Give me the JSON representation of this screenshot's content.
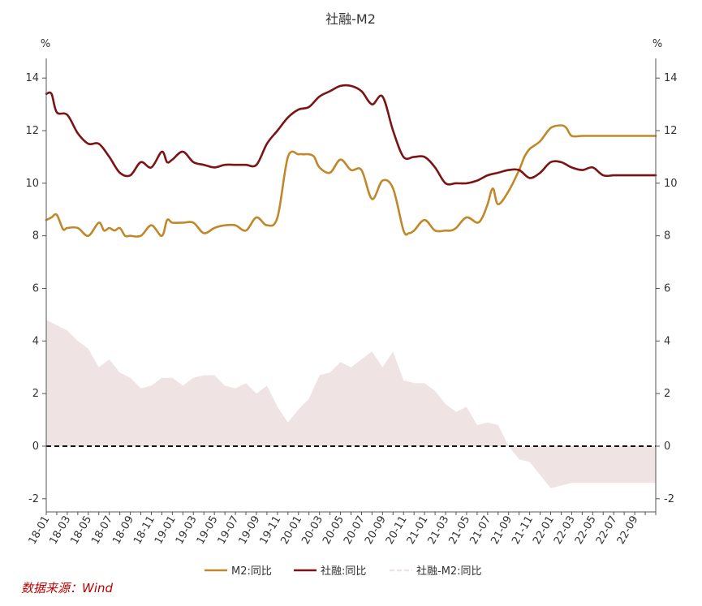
{
  "chart_data": {
    "type": "line",
    "title": "社融-M2",
    "source": "数据来源：Wind",
    "unit_left": "%",
    "unit_right": "%",
    "ylim": [
      -2.5,
      14.5
    ],
    "yticks": [
      -2,
      0,
      2,
      4,
      6,
      8,
      10,
      12,
      14
    ],
    "xlim": [
      0,
      58
    ],
    "xtick_labels": [
      "18-01",
      "18-03",
      "18-05",
      "18-07",
      "18-09",
      "18-11",
      "19-01",
      "19-03",
      "19-05",
      "19-07",
      "19-09",
      "19-11",
      "20-01",
      "20-03",
      "20-05",
      "20-07",
      "20-09",
      "20-11",
      "21-01",
      "21-03",
      "21-05",
      "21-07",
      "21-09",
      "21-11",
      "22-01",
      "22-03",
      "22-05",
      "22-07",
      "22-09"
    ],
    "colors": {
      "m2": "#c0882a",
      "tsf": "#7b1414",
      "diff_fill": "#efe3e3",
      "zero": "#111111",
      "axis": "#555555"
    },
    "series": [
      {
        "key": "m2",
        "name": "M2:同比",
        "type": "line",
        "x": [
          0,
          0.5,
          1,
          1.6,
          2,
          3,
          4,
          5,
          5.5,
          6,
          6.5,
          7,
          7.5,
          8,
          9,
          10,
          11,
          11.5,
          12,
          13,
          14,
          15,
          16,
          17,
          18,
          19,
          20,
          21,
          22,
          23,
          24,
          24.5,
          25,
          25.5,
          26,
          27,
          28,
          29,
          30,
          31,
          32,
          33,
          34,
          34.5,
          35,
          36,
          37,
          38,
          38.5,
          39,
          40,
          41,
          41.5,
          42,
          42.5,
          43,
          44,
          45,
          45.5,
          46,
          47,
          48,
          49,
          49.5,
          50,
          51,
          52,
          53,
          54,
          55,
          56,
          56.5,
          57,
          58
        ],
        "values": [
          8.6,
          8.7,
          8.8,
          8.25,
          8.3,
          8.3,
          8.0,
          8.5,
          8.2,
          8.3,
          8.2,
          8.3,
          8.0,
          8.0,
          8.0,
          8.4,
          8.0,
          8.6,
          8.5,
          8.5,
          8.5,
          8.1,
          8.3,
          8.4,
          8.4,
          8.2,
          8.7,
          8.4,
          8.7,
          11.0,
          11.1,
          11.1,
          11.1,
          11.0,
          10.6,
          10.4,
          10.9,
          10.5,
          10.5,
          9.4,
          10.1,
          9.8,
          8.2,
          8.1,
          8.2,
          8.6,
          8.2,
          8.2,
          8.2,
          8.3,
          8.7,
          8.5,
          8.7,
          9.2,
          9.8,
          9.2,
          9.7,
          10.5,
          11.0,
          11.3,
          11.6,
          12.1,
          12.2,
          12.1,
          11.8,
          11.8,
          11.8,
          11.8,
          11.8,
          11.8,
          11.8,
          11.8,
          11.8,
          11.8
        ]
      },
      {
        "key": "tsf",
        "name": "社融:同比",
        "type": "line",
        "x": [
          0,
          0.5,
          1,
          2,
          3,
          4,
          5,
          6,
          7,
          8,
          9,
          10,
          11,
          11.5,
          12,
          13,
          14,
          15,
          16,
          17,
          18,
          19,
          20,
          21,
          22,
          23,
          24,
          25,
          26,
          27,
          28,
          29,
          30,
          31,
          32,
          33,
          34,
          35,
          36,
          37,
          38,
          39,
          40,
          41,
          42,
          43,
          44,
          45,
          46,
          47,
          48,
          49,
          50,
          51,
          52,
          53,
          54,
          55,
          56,
          57,
          58
        ],
        "values": [
          13.4,
          13.4,
          12.7,
          12.6,
          11.9,
          11.5,
          11.5,
          11.0,
          10.4,
          10.3,
          10.8,
          10.6,
          11.2,
          10.8,
          10.9,
          11.2,
          10.8,
          10.7,
          10.6,
          10.7,
          10.7,
          10.7,
          10.7,
          11.5,
          12.0,
          12.5,
          12.8,
          12.9,
          13.3,
          13.5,
          13.7,
          13.7,
          13.5,
          13.0,
          13.3,
          12.0,
          11.0,
          11.0,
          11.0,
          10.6,
          10.0,
          10.0,
          10.0,
          10.1,
          10.3,
          10.4,
          10.5,
          10.5,
          10.2,
          10.4,
          10.8,
          10.8,
          10.6,
          10.5,
          10.6,
          10.3,
          10.3,
          10.3,
          10.3,
          10.3,
          10.3
        ]
      },
      {
        "key": "diff",
        "name": "社融-M2:同比",
        "type": "area",
        "x": [
          0,
          0.5,
          1,
          2,
          3,
          4,
          5,
          6,
          7,
          8,
          9,
          10,
          11,
          12,
          13,
          14,
          15,
          16,
          17,
          18,
          19,
          20,
          21,
          22,
          23,
          24,
          25,
          26,
          27,
          28,
          29,
          30,
          31,
          32,
          33,
          34,
          35,
          36,
          37,
          38,
          39,
          40,
          41,
          42,
          43,
          44,
          45,
          46,
          47,
          48,
          49,
          50,
          51,
          52,
          53,
          54,
          55,
          56,
          57,
          58
        ],
        "values": [
          4.8,
          4.7,
          4.6,
          4.4,
          4.0,
          3.7,
          3.0,
          3.3,
          2.8,
          2.6,
          2.2,
          2.3,
          2.6,
          2.6,
          2.3,
          2.6,
          2.7,
          2.7,
          2.3,
          2.2,
          2.4,
          2.0,
          2.3,
          1.5,
          0.9,
          1.4,
          1.8,
          2.7,
          2.8,
          3.2,
          3.0,
          3.3,
          3.6,
          3.0,
          3.6,
          2.5,
          2.4,
          2.4,
          2.1,
          1.6,
          1.3,
          1.5,
          0.8,
          0.9,
          0.8,
          0.0,
          -0.5,
          -0.6,
          -1.1,
          -1.6,
          -1.5,
          -1.4,
          -1.4,
          -1.4,
          -1.4,
          -1.4,
          -1.4,
          -1.4,
          -1.4,
          -1.4
        ]
      }
    ],
    "legend": [
      {
        "key": "m2",
        "label": "M2:同比"
      },
      {
        "key": "tsf",
        "label": "社融:同比"
      },
      {
        "key": "diff",
        "label": "社融-M2:同比"
      }
    ]
  }
}
